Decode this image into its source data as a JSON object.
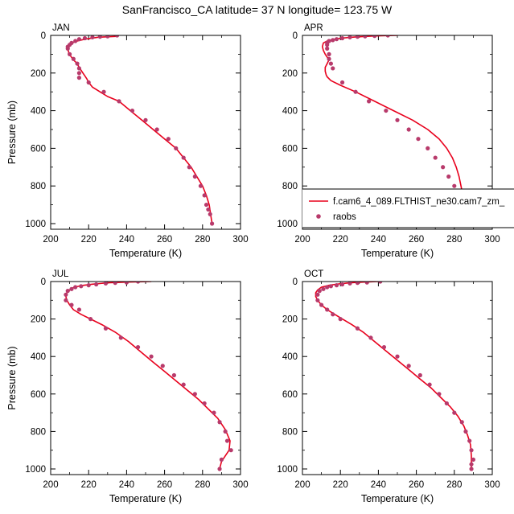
{
  "figure": {
    "title": "SanFrancisco_CA  latitude= 37 N longitude= 123.75 W"
  },
  "legend": {
    "model_label": "f.cam6_4_089.FLTHIST_ne30.cam7_zm_",
    "obs_label": "raobs",
    "model_color": "#e8001c",
    "obs_color": "#b83a6b"
  },
  "chart_data": [
    {
      "type": "line",
      "panel": "JAN",
      "xlabel": "Temperature (K)",
      "ylabel": "Pressure (mb)",
      "xlim": [
        200,
        300
      ],
      "ylim": [
        1030,
        0
      ],
      "xticks": [
        "200",
        "220",
        "240",
        "260",
        "280",
        "300"
      ],
      "yticks": [
        "0",
        "200",
        "400",
        "600",
        "800",
        "1000"
      ],
      "legend": false,
      "series": [
        {
          "kind": "line",
          "x": [
            235,
            225,
            218,
            214,
            211,
            209.5,
            209,
            209.5,
            210.5,
            212,
            214,
            215,
            216,
            217,
            218,
            219,
            220,
            222,
            226,
            230,
            236,
            242,
            248,
            254,
            260,
            266,
            270,
            274,
            277,
            280,
            282,
            283.5,
            285
          ],
          "y": [
            5,
            10,
            20,
            30,
            40,
            50,
            70,
            90,
            110,
            130,
            150,
            170,
            185,
            200,
            215,
            230,
            250,
            275,
            300,
            325,
            350,
            400,
            450,
            500,
            550,
            600,
            650,
            700,
            750,
            800,
            850,
            900,
            1000
          ]
        },
        {
          "kind": "scatter",
          "x": [
            235,
            230,
            226,
            222,
            218,
            215,
            213,
            211,
            210,
            209,
            209,
            210,
            212,
            214,
            215,
            215,
            215,
            220,
            228,
            236,
            243,
            250,
            256,
            262,
            266,
            270,
            273,
            276,
            279,
            281,
            282,
            283,
            284,
            285
          ],
          "y": [
            0,
            5,
            7,
            10,
            15,
            20,
            30,
            40,
            50,
            60,
            70,
            100,
            125,
            150,
            175,
            200,
            225,
            250,
            300,
            350,
            400,
            450,
            500,
            550,
            600,
            650,
            700,
            750,
            800,
            850,
            900,
            925,
            950,
            1000
          ]
        }
      ]
    },
    {
      "type": "line",
      "panel": "APR",
      "xlabel": "Temperature (K)",
      "ylabel": "",
      "xlim": [
        200,
        300
      ],
      "ylim": [
        1030,
        0
      ],
      "xticks": [
        "200",
        "220",
        "240",
        "260",
        "280",
        "300"
      ],
      "yticks": [
        "0",
        "200",
        "400",
        "600",
        "800",
        "1000"
      ],
      "legend": true,
      "series": [
        {
          "kind": "line",
          "x": [
            250,
            238,
            228,
            220,
            216,
            213,
            211,
            210.5,
            211,
            212,
            214,
            213,
            212,
            212,
            212.5,
            213,
            215,
            220,
            228,
            238,
            248,
            258,
            266,
            272,
            276,
            279,
            281,
            282.5,
            283.5,
            284.5,
            285,
            285
          ],
          "y": [
            0,
            3,
            8,
            15,
            22,
            30,
            40,
            60,
            80,
            100,
            130,
            150,
            170,
            190,
            210,
            220,
            240,
            265,
            300,
            350,
            400,
            450,
            500,
            550,
            600,
            650,
            700,
            750,
            800,
            850,
            900,
            1000
          ]
        },
        {
          "kind": "scatter",
          "x": [
            245,
            238,
            233,
            229,
            225,
            221,
            218,
            216,
            214,
            213,
            213,
            213,
            214,
            214,
            215,
            216,
            221,
            228,
            235,
            244,
            250,
            256,
            261,
            266,
            270,
            274,
            277,
            280,
            282,
            283,
            284,
            285,
            285
          ],
          "y": [
            0,
            3,
            5,
            7,
            10,
            15,
            20,
            25,
            30,
            40,
            50,
            70,
            100,
            125,
            150,
            175,
            250,
            300,
            350,
            400,
            450,
            500,
            550,
            600,
            650,
            700,
            750,
            800,
            850,
            900,
            925,
            950,
            1000
          ]
        }
      ]
    },
    {
      "type": "line",
      "panel": "JUL",
      "xlabel": "Temperature (K)",
      "ylabel": "Pressure (mb)",
      "xlim": [
        200,
        300
      ],
      "ylim": [
        1030,
        0
      ],
      "xticks": [
        "200",
        "220",
        "240",
        "260",
        "280",
        "300"
      ],
      "yticks": [
        "0",
        "200",
        "400",
        "600",
        "800",
        "1000"
      ],
      "legend": false,
      "series": [
        {
          "kind": "line",
          "x": [
            253,
            240,
            230,
            222,
            216,
            212,
            210,
            208.5,
            208,
            208.5,
            210,
            212,
            216,
            221,
            227,
            234,
            241,
            248,
            254,
            260,
            266,
            272,
            278,
            283,
            288,
            292,
            294.5,
            294,
            292,
            290,
            289
          ],
          "y": [
            0,
            3,
            7,
            14,
            22,
            32,
            45,
            60,
            80,
            100,
            125,
            150,
            175,
            200,
            230,
            270,
            320,
            380,
            430,
            480,
            530,
            580,
            630,
            680,
            730,
            790,
            850,
            900,
            930,
            960,
            1000
          ]
        },
        {
          "kind": "scatter",
          "x": [
            246,
            240,
            234,
            229,
            224,
            220,
            216,
            213,
            211,
            209,
            208,
            208,
            211,
            215,
            221,
            229,
            237,
            246,
            253,
            259,
            265,
            270,
            276,
            281,
            286,
            289,
            292,
            293,
            295,
            290,
            289
          ],
          "y": [
            0,
            5,
            7,
            10,
            15,
            20,
            25,
            30,
            40,
            50,
            70,
            100,
            125,
            150,
            200,
            250,
            300,
            350,
            400,
            450,
            500,
            550,
            600,
            650,
            700,
            750,
            800,
            850,
            900,
            950,
            1000
          ]
        }
      ]
    },
    {
      "type": "line",
      "panel": "OCT",
      "xlabel": "Temperature (K)",
      "ylabel": "",
      "xlim": [
        200,
        300
      ],
      "ylim": [
        1030,
        0
      ],
      "xticks": [
        "200",
        "220",
        "240",
        "260",
        "280",
        "300"
      ],
      "yticks": [
        "0",
        "200",
        "400",
        "600",
        "800",
        "1000"
      ],
      "legend": false,
      "series": [
        {
          "kind": "line",
          "x": [
            240,
            232,
            225,
            219,
            214,
            210,
            208,
            207,
            207,
            208,
            210,
            213,
            217,
            221,
            226,
            232,
            238,
            244,
            250,
            256,
            262,
            268,
            273,
            278,
            282,
            285,
            287,
            288.5,
            289,
            289
          ],
          "y": [
            0,
            3,
            7,
            13,
            20,
            30,
            45,
            60,
            80,
            100,
            125,
            150,
            175,
            200,
            230,
            270,
            320,
            370,
            420,
            470,
            520,
            570,
            620,
            670,
            720,
            770,
            820,
            870,
            930,
            1000
          ]
        },
        {
          "kind": "scatter",
          "x": [
            241,
            234,
            229,
            225,
            221,
            218,
            215,
            213,
            211,
            209,
            208,
            208,
            210,
            213,
            216,
            220,
            229,
            236,
            243,
            250,
            256,
            262,
            267,
            272,
            276,
            280,
            284,
            286,
            288,
            289,
            290,
            289,
            289
          ],
          "y": [
            0,
            5,
            7,
            10,
            15,
            20,
            25,
            30,
            40,
            50,
            70,
            100,
            125,
            150,
            175,
            200,
            250,
            300,
            350,
            400,
            450,
            500,
            550,
            600,
            650,
            700,
            750,
            800,
            850,
            900,
            950,
            975,
            1000
          ]
        }
      ]
    }
  ]
}
